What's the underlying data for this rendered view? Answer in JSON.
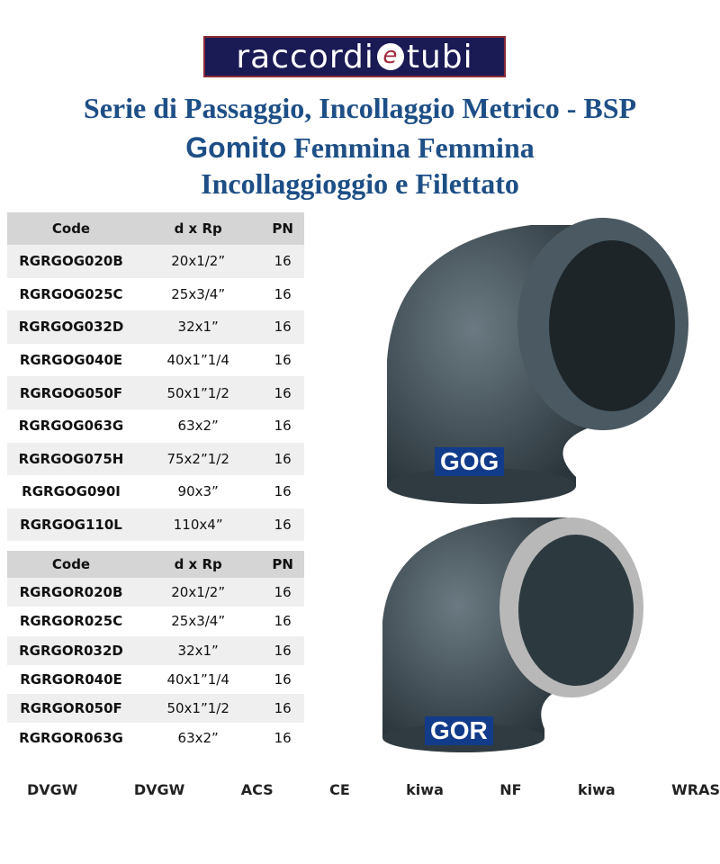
{
  "header": {
    "logo": [
      "raccordi",
      "e",
      "tubi"
    ],
    "title": "Serie di Passaggio, Incollaggio Metrico - BSP",
    "subtitle_bold": "Gomito",
    "subtitle": "Femmina Femmina",
    "subtitle2": "Incollaggioggio e Filettato"
  },
  "tables": [
    {
      "columns": [
        "Code",
        "d x Rp",
        "PN"
      ],
      "rows": [
        [
          "RGRGOG020B",
          "20x1/2”",
          "16"
        ],
        [
          "RGRGOG025C",
          "25x3/4”",
          "16"
        ],
        [
          "RGRGOG032D",
          "32x1”",
          "16"
        ],
        [
          "RGRGOG040E",
          "40x1”1/4",
          "16"
        ],
        [
          "RGRGOG050F",
          "50x1”1/2",
          "16"
        ],
        [
          "RGRGOG063G",
          "63x2”",
          "16"
        ],
        [
          "RGRGOG075H",
          "75x2”1/2",
          "16"
        ],
        [
          "RGRGOG090I",
          "90x3”",
          "16"
        ],
        [
          "RGRGOG110L",
          "110x4”",
          "16"
        ]
      ]
    },
    {
      "columns": [
        "Code",
        "d x Rp",
        "PN"
      ],
      "rows": [
        [
          "RGRGOR020B",
          "20x1/2”",
          "16"
        ],
        [
          "RGRGOR025C",
          "25x3/4”",
          "16"
        ],
        [
          "RGRGOR032D",
          "32x1”",
          "16"
        ],
        [
          "RGRGOR040E",
          "40x1”1/4",
          "16"
        ],
        [
          "RGRGOR050F",
          "50x1”1/2",
          "16"
        ],
        [
          "RGRGOR063G",
          "63x2”",
          "16"
        ]
      ]
    }
  ],
  "products": [
    {
      "label": "GOG"
    },
    {
      "label": "GOR"
    }
  ],
  "certifications": [
    "DVGW",
    "DVGW",
    "ACS",
    "CE",
    "kiwa",
    "NF",
    "kiwa",
    "WRAS"
  ]
}
